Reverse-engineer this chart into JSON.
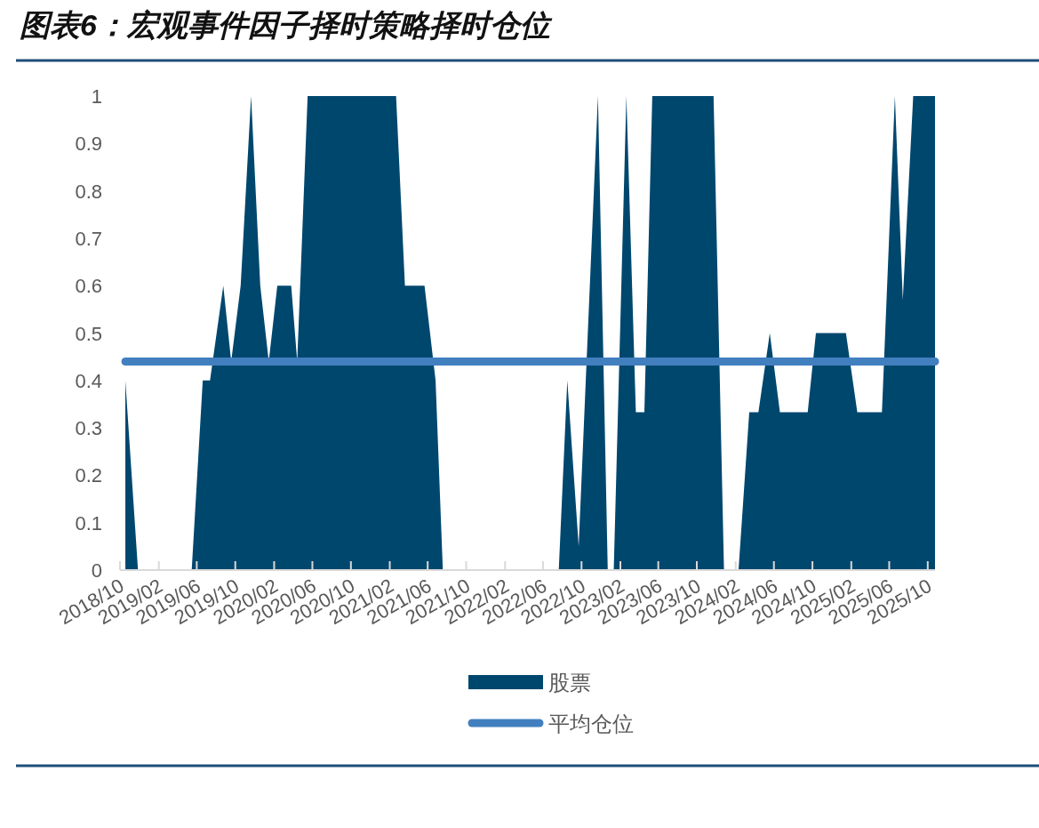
{
  "chart_data": {
    "type": "area",
    "title": "图表6：宏观事件因子择时策略择时仓位",
    "x": [
      "2018-10-18",
      "2018-11-27",
      "2019-05-16",
      "2019-06-20",
      "2019-07-13",
      "2019-08-24",
      "2019-09-18",
      "2019-10-18",
      "2019-11-20",
      "2019-12-19",
      "2020-01-15",
      "2020-02-11",
      "2020-03-26",
      "2020-04-14",
      "2020-05-17",
      "2021-02-21",
      "2021-03-21",
      "2021-05-22",
      "2021-06-26",
      "2021-07-19",
      "2022-07-21",
      "2022-08-17",
      "2022-09-22",
      "2022-11-22",
      "2022-12-23",
      "2023-01-11",
      "2023-02-20",
      "2023-03-22",
      "2023-04-18",
      "2023-05-13",
      "2023-11-23",
      "2023-12-26",
      "2024-02-10",
      "2024-03-15",
      "2024-04-13",
      "2024-05-19",
      "2024-06-20",
      "2024-09-16",
      "2024-10-12",
      "2025-01-15",
      "2025-02-20",
      "2025-05-09",
      "2025-06-19",
      "2025-07-14",
      "2025-08-16",
      "2025-10-24"
    ],
    "series": [
      {
        "name": "股票",
        "type": "area",
        "color": "#00476e",
        "values": [
          0.4,
          0,
          0,
          0.4,
          0.4,
          0.6,
          0.44,
          0.6,
          1,
          0.6,
          0.44,
          0.6,
          0.6,
          0.44,
          1,
          1,
          0.6,
          0.6,
          0.4,
          0,
          0,
          0.4,
          0.05,
          1,
          0,
          0,
          1,
          0.333,
          0.333,
          1,
          1,
          0,
          0,
          0.333,
          0.333,
          0.5,
          0.333,
          0.333,
          0.5,
          0.5,
          0.333,
          0.333,
          1,
          0.57,
          1,
          1
        ]
      },
      {
        "name": "平均仓位",
        "type": "line",
        "color": "#427fbf",
        "x": [
          "2018-10-18",
          "2025-10-24"
        ],
        "values": [
          0.44,
          0.44
        ]
      }
    ],
    "xlim": [
      "2018-10-01",
      "2025-10-24"
    ],
    "xticks": [
      {
        "value": "2018-10-01",
        "label": "2018/10"
      },
      {
        "value": "2019-02-01",
        "label": "2019/02"
      },
      {
        "value": "2019-06-01",
        "label": "2019/06"
      },
      {
        "value": "2019-10-01",
        "label": "2019/10"
      },
      {
        "value": "2020-02-01",
        "label": "2020/02"
      },
      {
        "value": "2020-06-01",
        "label": "2020/06"
      },
      {
        "value": "2020-10-01",
        "label": "2020/10"
      },
      {
        "value": "2021-02-01",
        "label": "2021/02"
      },
      {
        "value": "2021-06-01",
        "label": "2021/06"
      },
      {
        "value": "2021-10-01",
        "label": "2021/10"
      },
      {
        "value": "2022-02-01",
        "label": "2022/02"
      },
      {
        "value": "2022-06-01",
        "label": "2022/06"
      },
      {
        "value": "2022-10-01",
        "label": "2022/10"
      },
      {
        "value": "2023-02-01",
        "label": "2023/02"
      },
      {
        "value": "2023-06-01",
        "label": "2023/06"
      },
      {
        "value": "2023-10-01",
        "label": "2023/10"
      },
      {
        "value": "2024-02-01",
        "label": "2024/02"
      },
      {
        "value": "2024-06-01",
        "label": "2024/06"
      },
      {
        "value": "2024-10-01",
        "label": "2024/10"
      },
      {
        "value": "2025-02-01",
        "label": "2025/02"
      },
      {
        "value": "2025-06-01",
        "label": "2025/06"
      },
      {
        "value": "2025-10-01",
        "label": "2025/10"
      }
    ],
    "ylim": [
      0,
      1
    ],
    "yticks": [
      0,
      0.1,
      0.2,
      0.3,
      0.4,
      0.5,
      0.6,
      0.7,
      0.8,
      0.9,
      1
    ],
    "grid": false,
    "legend": "bottom"
  }
}
